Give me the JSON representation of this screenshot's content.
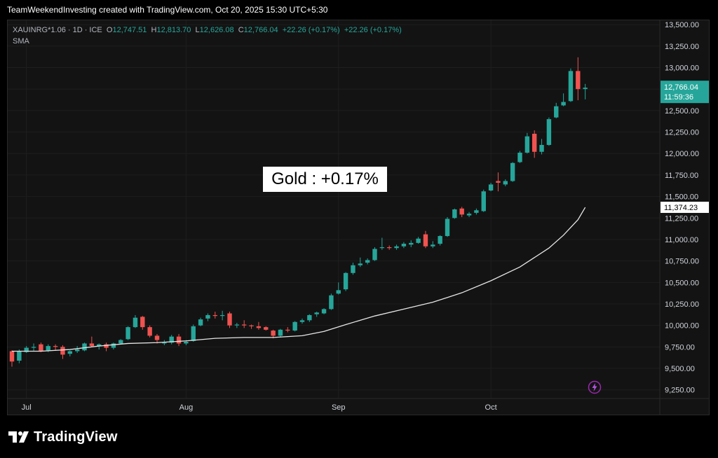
{
  "header": {
    "credit": "TeamWeekendInvesting created with TradingView.com, Oct 20, 2025 15:30 UTC+5:30"
  },
  "legend": {
    "symbol": "XAUINRG*1.06 · 1D · ICE",
    "o_label": "O",
    "o_value": "12,747.51",
    "h_label": "H",
    "h_value": "12,813.70",
    "l_label": "L",
    "l_value": "12,626.08",
    "c_label": "C",
    "c_value": "12,766.04",
    "change1": "+22.26 (+0.17%)",
    "change2": "+22.26 (+0.17%)",
    "sma_label": "SMA"
  },
  "annotation": "Gold : +0.17%",
  "price_tag": {
    "price": "12,766.04",
    "countdown": "11:59:36"
  },
  "sma_tag": "11,374.23",
  "logo_text": "TradingView",
  "colors": {
    "up": "#26a69a",
    "down": "#ef5350",
    "sma": "#e6e6e6",
    "bg": "#131313",
    "grid": "#1e1e1e",
    "axis_text": "#d1d4dc"
  },
  "chart_data": {
    "type": "candlestick",
    "ylim": [
      9150,
      13550
    ],
    "y_ticks": [
      9250,
      9500,
      9750,
      10000,
      10250,
      10500,
      10750,
      11000,
      11250,
      11500,
      11750,
      12000,
      12250,
      12500,
      12750,
      13000,
      13250,
      13500
    ],
    "y_tick_labels": [
      "9,250.00",
      "9,500.00",
      "9,750.00",
      "10,000.00",
      "10,250.00",
      "10,500.00",
      "10,750.00",
      "11,000.00",
      "11,250.00",
      "11,500.00",
      "11,750.00",
      "12,000.00",
      "12,250.00",
      "12,500.00",
      "12,750.00",
      "13,000.00",
      "13,250.00",
      "13,500.00"
    ],
    "x_labels": [
      {
        "label": "Jul",
        "index": 2
      },
      {
        "label": "Aug",
        "index": 24
      },
      {
        "label": "Sep",
        "index": 45
      },
      {
        "label": "Oct",
        "index": 66
      }
    ],
    "candles": [
      {
        "o": 9700,
        "h": 9710,
        "l": 9520,
        "c": 9580
      },
      {
        "o": 9590,
        "h": 9720,
        "l": 9560,
        "c": 9700
      },
      {
        "o": 9690,
        "h": 9760,
        "l": 9680,
        "c": 9740
      },
      {
        "o": 9740,
        "h": 9790,
        "l": 9700,
        "c": 9750
      },
      {
        "o": 9780,
        "h": 9800,
        "l": 9690,
        "c": 9700
      },
      {
        "o": 9710,
        "h": 9780,
        "l": 9690,
        "c": 9760
      },
      {
        "o": 9760,
        "h": 9780,
        "l": 9710,
        "c": 9750
      },
      {
        "o": 9750,
        "h": 9770,
        "l": 9610,
        "c": 9660
      },
      {
        "o": 9670,
        "h": 9710,
        "l": 9640,
        "c": 9700
      },
      {
        "o": 9700,
        "h": 9760,
        "l": 9680,
        "c": 9720
      },
      {
        "o": 9710,
        "h": 9800,
        "l": 9700,
        "c": 9790
      },
      {
        "o": 9790,
        "h": 9870,
        "l": 9750,
        "c": 9760
      },
      {
        "o": 9760,
        "h": 9790,
        "l": 9720,
        "c": 9780
      },
      {
        "o": 9780,
        "h": 9800,
        "l": 9700,
        "c": 9740
      },
      {
        "o": 9740,
        "h": 9800,
        "l": 9720,
        "c": 9790
      },
      {
        "o": 9790,
        "h": 9840,
        "l": 9780,
        "c": 9830
      },
      {
        "o": 9840,
        "h": 9990,
        "l": 9830,
        "c": 9980
      },
      {
        "o": 9980,
        "h": 10120,
        "l": 9970,
        "c": 10090
      },
      {
        "o": 10100,
        "h": 10110,
        "l": 9950,
        "c": 9980
      },
      {
        "o": 9980,
        "h": 10000,
        "l": 9860,
        "c": 9880
      },
      {
        "o": 9880,
        "h": 9900,
        "l": 9790,
        "c": 9830
      },
      {
        "o": 9790,
        "h": 9830,
        "l": 9770,
        "c": 9800
      },
      {
        "o": 9800,
        "h": 9890,
        "l": 9780,
        "c": 9870
      },
      {
        "o": 9870,
        "h": 9900,
        "l": 9760,
        "c": 9790
      },
      {
        "o": 9790,
        "h": 9830,
        "l": 9770,
        "c": 9810
      },
      {
        "o": 9820,
        "h": 10010,
        "l": 9810,
        "c": 9990
      },
      {
        "o": 10000,
        "h": 10090,
        "l": 9990,
        "c": 10070
      },
      {
        "o": 10080,
        "h": 10140,
        "l": 10050,
        "c": 10120
      },
      {
        "o": 10120,
        "h": 10160,
        "l": 10080,
        "c": 10110
      },
      {
        "o": 10110,
        "h": 10170,
        "l": 10060,
        "c": 10120
      },
      {
        "o": 10140,
        "h": 10160,
        "l": 9970,
        "c": 10000
      },
      {
        "o": 10000,
        "h": 10030,
        "l": 9970,
        "c": 10010
      },
      {
        "o": 10010,
        "h": 10060,
        "l": 9970,
        "c": 10000
      },
      {
        "o": 10000,
        "h": 10010,
        "l": 9960,
        "c": 9990
      },
      {
        "o": 9990,
        "h": 10040,
        "l": 9950,
        "c": 9970
      },
      {
        "o": 9980,
        "h": 9990,
        "l": 9940,
        "c": 9950
      },
      {
        "o": 9940,
        "h": 9950,
        "l": 9850,
        "c": 9880
      },
      {
        "o": 9880,
        "h": 9960,
        "l": 9860,
        "c": 9950
      },
      {
        "o": 9950,
        "h": 9980,
        "l": 9920,
        "c": 9940
      },
      {
        "o": 9940,
        "h": 10050,
        "l": 9930,
        "c": 10040
      },
      {
        "o": 10040,
        "h": 10080,
        "l": 10020,
        "c": 10060
      },
      {
        "o": 10060,
        "h": 10130,
        "l": 10040,
        "c": 10120
      },
      {
        "o": 10130,
        "h": 10160,
        "l": 10100,
        "c": 10150
      },
      {
        "o": 10140,
        "h": 10200,
        "l": 10130,
        "c": 10190
      },
      {
        "o": 10190,
        "h": 10370,
        "l": 10180,
        "c": 10350
      },
      {
        "o": 10370,
        "h": 10500,
        "l": 10360,
        "c": 10410
      },
      {
        "o": 10420,
        "h": 10620,
        "l": 10400,
        "c": 10610
      },
      {
        "o": 10610,
        "h": 10730,
        "l": 10590,
        "c": 10700
      },
      {
        "o": 10700,
        "h": 10790,
        "l": 10680,
        "c": 10720
      },
      {
        "o": 10730,
        "h": 10780,
        "l": 10710,
        "c": 10760
      },
      {
        "o": 10760,
        "h": 10910,
        "l": 10750,
        "c": 10890
      },
      {
        "o": 10900,
        "h": 11020,
        "l": 10880,
        "c": 10910
      },
      {
        "o": 10910,
        "h": 10930,
        "l": 10880,
        "c": 10900
      },
      {
        "o": 10900,
        "h": 10940,
        "l": 10880,
        "c": 10920
      },
      {
        "o": 10920,
        "h": 10970,
        "l": 10900,
        "c": 10950
      },
      {
        "o": 10940,
        "h": 10990,
        "l": 10910,
        "c": 10960
      },
      {
        "o": 10960,
        "h": 11030,
        "l": 10950,
        "c": 11010
      },
      {
        "o": 11060,
        "h": 11100,
        "l": 10900,
        "c": 10920
      },
      {
        "o": 10920,
        "h": 10980,
        "l": 10900,
        "c": 10940
      },
      {
        "o": 10950,
        "h": 11050,
        "l": 10930,
        "c": 11040
      },
      {
        "o": 11040,
        "h": 11260,
        "l": 11030,
        "c": 11240
      },
      {
        "o": 11250,
        "h": 11360,
        "l": 11240,
        "c": 11350
      },
      {
        "o": 11360,
        "h": 11380,
        "l": 11260,
        "c": 11290
      },
      {
        "o": 11280,
        "h": 11320,
        "l": 11260,
        "c": 11300
      },
      {
        "o": 11310,
        "h": 11360,
        "l": 11290,
        "c": 11340
      },
      {
        "o": 11330,
        "h": 11580,
        "l": 11320,
        "c": 11560
      },
      {
        "o": 11570,
        "h": 11660,
        "l": 11560,
        "c": 11640
      },
      {
        "o": 11680,
        "h": 11780,
        "l": 11560,
        "c": 11660
      },
      {
        "o": 11640,
        "h": 11700,
        "l": 11620,
        "c": 11680
      },
      {
        "o": 11680,
        "h": 11900,
        "l": 11670,
        "c": 11890
      },
      {
        "o": 11900,
        "h": 12030,
        "l": 11890,
        "c": 12010
      },
      {
        "o": 12010,
        "h": 12240,
        "l": 12000,
        "c": 12200
      },
      {
        "o": 12230,
        "h": 12270,
        "l": 11950,
        "c": 12020
      },
      {
        "o": 12020,
        "h": 12170,
        "l": 11990,
        "c": 12100
      },
      {
        "o": 12100,
        "h": 12420,
        "l": 12090,
        "c": 12400
      },
      {
        "o": 12420,
        "h": 12590,
        "l": 12410,
        "c": 12550
      },
      {
        "o": 12560,
        "h": 12700,
        "l": 12550,
        "c": 12600
      },
      {
        "o": 12610,
        "h": 12990,
        "l": 12600,
        "c": 12960
      },
      {
        "o": 12960,
        "h": 13120,
        "l": 12620,
        "c": 12750
      },
      {
        "o": 12750,
        "h": 12810,
        "l": 12630,
        "c": 12766
      }
    ],
    "sma": {
      "name": "SMA",
      "points": [
        [
          0,
          9700
        ],
        [
          4,
          9700
        ],
        [
          8,
          9720
        ],
        [
          12,
          9760
        ],
        [
          16,
          9790
        ],
        [
          20,
          9800
        ],
        [
          24,
          9820
        ],
        [
          28,
          9850
        ],
        [
          32,
          9860
        ],
        [
          36,
          9860
        ],
        [
          40,
          9880
        ],
        [
          43,
          9930
        ],
        [
          46,
          10010
        ],
        [
          50,
          10110
        ],
        [
          54,
          10190
        ],
        [
          58,
          10270
        ],
        [
          62,
          10380
        ],
        [
          66,
          10520
        ],
        [
          70,
          10680
        ],
        [
          74,
          10900
        ],
        [
          76,
          11050
        ],
        [
          78,
          11230
        ],
        [
          79,
          11374
        ]
      ]
    },
    "last_price": 12766.04,
    "last_sma": 11374.23
  }
}
